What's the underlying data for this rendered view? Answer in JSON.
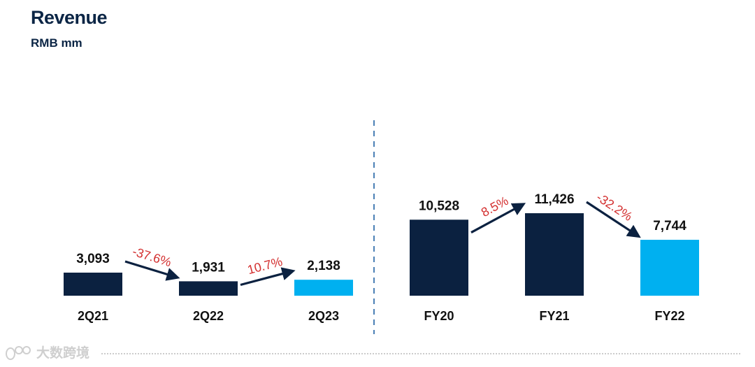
{
  "header": {
    "title": "Revenue",
    "subtitle": "RMB mm"
  },
  "watermark": {
    "text": "大数跨境"
  },
  "colors": {
    "dark": "#0b2140",
    "highlight": "#00b0f0",
    "growth": "#d32f2f",
    "divider": "#4a7fb5",
    "label": "#111111"
  },
  "chart_data": [
    {
      "type": "bar",
      "categories": [
        "2Q21",
        "2Q22",
        "2Q23"
      ],
      "values": [
        3093,
        1931,
        2138
      ],
      "value_labels": [
        "3,093",
        "1,931",
        "2,138"
      ],
      "highlight_index": 2,
      "changes": [
        "-37.6%",
        "10.7%"
      ],
      "change_values": [
        -37.6,
        10.7
      ],
      "title": "",
      "xlabel": "",
      "ylabel": ""
    },
    {
      "type": "bar",
      "categories": [
        "FY20",
        "FY21",
        "FY22"
      ],
      "values": [
        10528,
        11426,
        7744
      ],
      "value_labels": [
        "10,528",
        "11,426",
        "7,744"
      ],
      "highlight_index": 2,
      "changes": [
        "8.5%",
        "-32.2%"
      ],
      "change_values": [
        8.5,
        -32.2
      ],
      "title": "",
      "xlabel": "",
      "ylabel": ""
    }
  ]
}
